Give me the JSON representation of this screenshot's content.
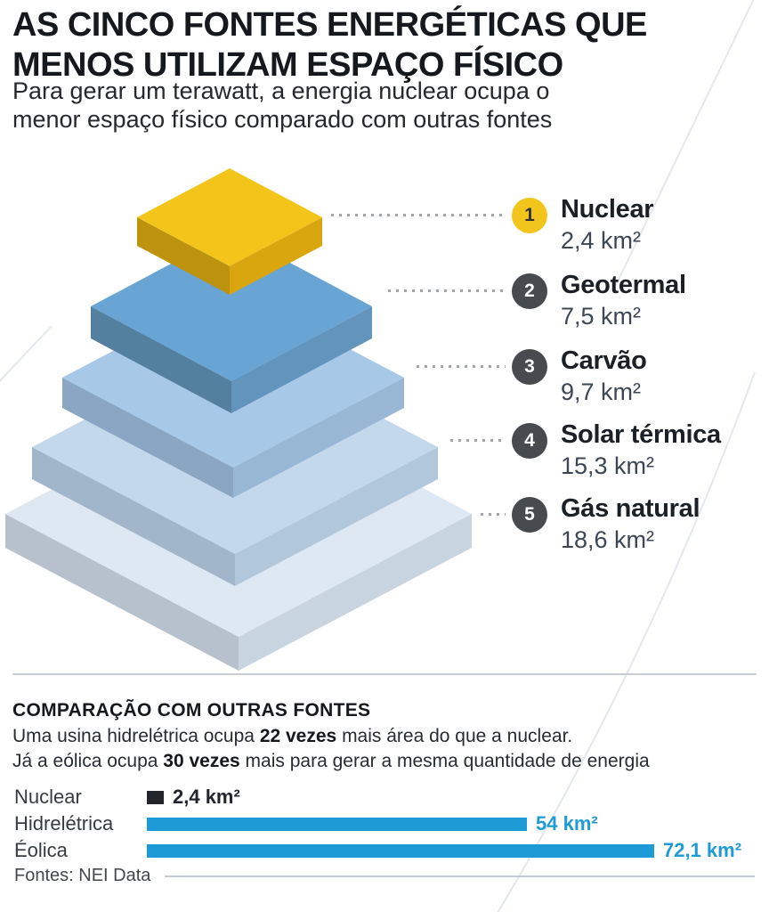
{
  "header": {
    "title_lines": [
      "AS CINCO FONTES ENERGÉTICAS QUE",
      "MENOS UTILIZAM ESPAÇO FÍSICO"
    ],
    "subtitle_lines": [
      "Para gerar um terawatt, a energia nuclear ocupa o",
      "menor espaço físico comparado com outras fontes"
    ]
  },
  "pyramid": {
    "unit": "km²",
    "layers": [
      {
        "rank": "1",
        "name": "Nuclear",
        "value_label": "2,4 km²",
        "value_km2": 2.4,
        "badge_color": "#F2C51D",
        "badge_text_color": "#2F3237",
        "colors": {
          "top": "#F3C51B",
          "left": "#BD930E",
          "right": "#D9A60F"
        }
      },
      {
        "rank": "2",
        "name": "Geotermal",
        "value_label": "7,5 km²",
        "value_km2": 7.5,
        "badge_color": "#474A4E",
        "badge_text_color": "#FFFFFF",
        "colors": {
          "top": "#68A4D4",
          "left": "#54809F",
          "right": "#6394BC"
        }
      },
      {
        "rank": "3",
        "name": "Carvão",
        "value_label": "9,7 km²",
        "value_km2": 9.7,
        "badge_color": "#474A4E",
        "badge_text_color": "#FFFFFF",
        "colors": {
          "top": "#A7C8E7",
          "left": "#8AA6C3",
          "right": "#97B7D5"
        }
      },
      {
        "rank": "4",
        "name": "Solar térmica",
        "value_label": "15,3 km²",
        "value_km2": 15.3,
        "badge_color": "#474A4E",
        "badge_text_color": "#FFFFFF",
        "colors": {
          "top": "#C4D8EC",
          "left": "#A2B6CB",
          "right": "#B0C7DC"
        }
      },
      {
        "rank": "5",
        "name": "Gás natural",
        "value_label": "18,6 km²",
        "value_km2": 18.6,
        "badge_color": "#474A4E",
        "badge_text_color": "#FFFFFF",
        "colors": {
          "top": "#DEE8F2",
          "left": "#B6C1CD",
          "right": "#C8D4E0"
        }
      }
    ]
  },
  "comparison": {
    "heading": "COMPARAÇÃO COM OUTRAS FONTES",
    "line1": {
      "prefix": "Uma usina hidrelétrica ocupa ",
      "bold": "22 vezes",
      "suffix": " mais área do que a nuclear."
    },
    "line2": {
      "prefix": "Já a eólica ocupa ",
      "bold": "30 vezes",
      "suffix": " mais para gerar a mesma quantidade de energia"
    }
  },
  "chart_data": [
    {
      "type": "pyramid",
      "title": "AS CINCO FONTES ENERGÉTICAS QUE MENOS UTILIZAM ESPAÇO FÍSICO",
      "subtitle": "Para gerar um terawatt, a energia nuclear ocupa o menor espaço físico comparado com outras fontes",
      "categories": [
        "Nuclear",
        "Geotermal",
        "Carvão",
        "Solar térmica",
        "Gás natural"
      ],
      "values": [
        2.4,
        7.5,
        9.7,
        15.3,
        18.6
      ],
      "value_labels": [
        "2,4 km²",
        "7,5 km²",
        "9,7 km²",
        "15,3 km²",
        "18,6 km²"
      ],
      "unit": "km²",
      "legend_position": "right"
    },
    {
      "type": "bar",
      "title": "COMPARAÇÃO COM OUTRAS FONTES",
      "categories": [
        "Nuclear",
        "Hidrelétrica",
        "Éolica"
      ],
      "values": [
        2.4,
        54,
        72.1
      ],
      "value_labels": [
        "2,4 km²",
        "54 km²",
        "72,1 km²"
      ],
      "bar_colors": [
        "#22262C",
        "#1E9BD7",
        "#1E9BD7"
      ],
      "value_label_colors": [
        "#22262C",
        "#1E9BD7",
        "#1E9BD7"
      ],
      "xlim": [
        0,
        72.1
      ],
      "grid": false,
      "legend_position": "none",
      "annotations": [
        "hidrelétrica ocupa 22 vezes mais área do que a nuclear",
        "eólica ocupa 30 vezes mais"
      ]
    }
  ],
  "footer": {
    "source": "Fontes: NEI Data"
  },
  "colors": {
    "accent_blue": "#1E9BD7",
    "accent_yellow": "#F2C51D",
    "text_dark": "#1B2026",
    "leader_dot": "#9FA5AB"
  }
}
